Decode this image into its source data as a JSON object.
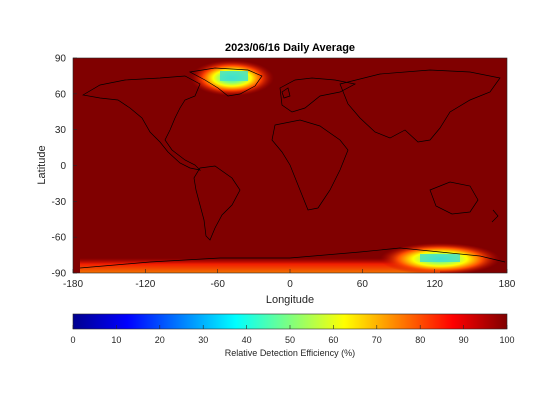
{
  "chart_data": {
    "type": "heatmap",
    "title": "2023/06/16 Daily Average",
    "xlabel": "Longitude",
    "ylabel": "Latitude",
    "xlim": [
      -180,
      180
    ],
    "ylim": [
      -90,
      90
    ],
    "xticks": [
      "-180",
      "-120",
      "-60",
      "0",
      "60",
      "120",
      "180"
    ],
    "yticks": [
      "90",
      "60",
      "30",
      "0",
      "-30",
      "-60",
      "-90"
    ],
    "colorbar": {
      "label": "Relative Detection Efficiency (%)",
      "range": [
        0,
        100
      ],
      "ticks": [
        "0",
        "10",
        "20",
        "30",
        "40",
        "50",
        "60",
        "70",
        "80",
        "90",
        "100"
      ],
      "colormap": "jet"
    },
    "background_value": 100,
    "low_efficiency_regions": [
      {
        "name": "Greenland",
        "lon": [
          -90,
          -20
        ],
        "lat": [
          58,
          84
        ],
        "min_value": 45
      },
      {
        "name": "Antarctica (East)",
        "lon": [
          85,
          170
        ],
        "lat": [
          -90,
          -68
        ],
        "min_value": 40
      },
      {
        "name": "Antarctica (Coast)",
        "lon": [
          -150,
          90
        ],
        "lat": [
          -90,
          -78
        ],
        "min_value": 70
      }
    ]
  }
}
